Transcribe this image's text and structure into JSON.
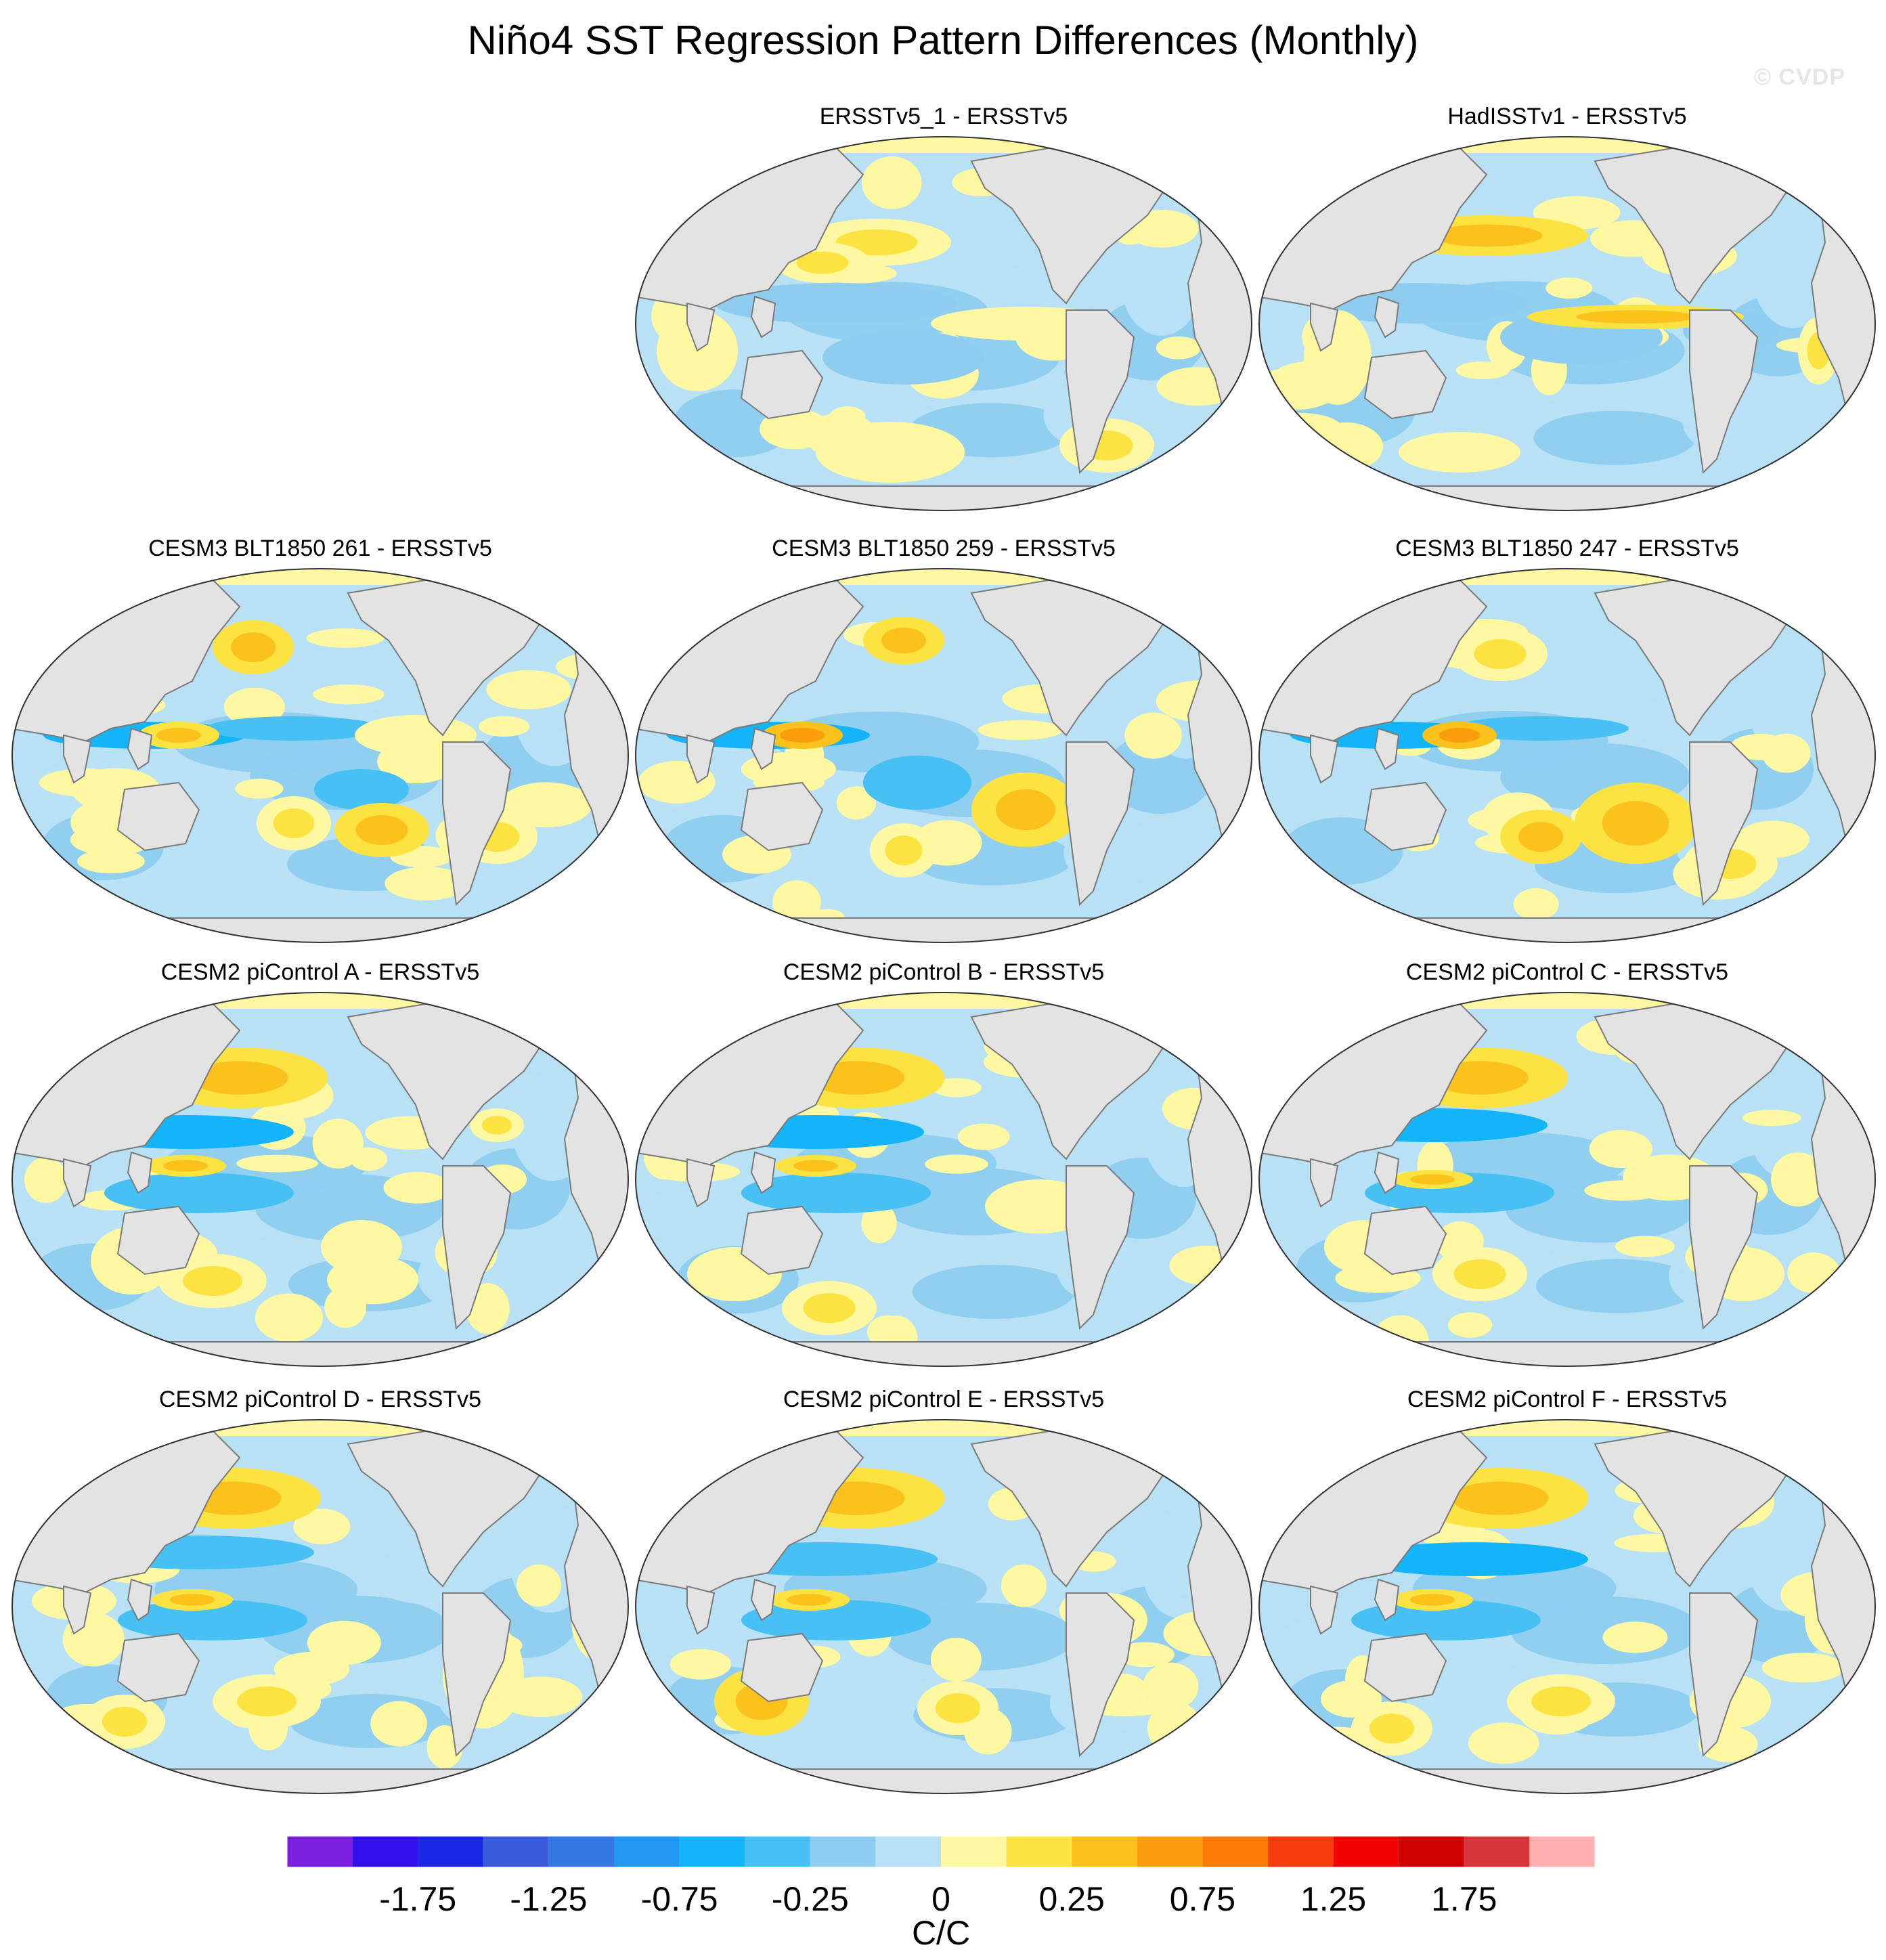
{
  "title": "Niño4 SST Regression Pattern Differences (Monthly)",
  "watermark": "© CVDP",
  "colors": {
    "land": "#e3e3e3",
    "coast": "#7a7a7a",
    "levels": [
      "#7c20e0",
      "#3210ee",
      "#1a28e6",
      "#3b5ddc",
      "#3478e6",
      "#2196f3",
      "#14b4f8",
      "#47c0f3",
      "#8ecdf0",
      "#b8e1f5",
      "#fff8a2",
      "#fde342",
      "#fcc21c",
      "#fb9e0c",
      "#fa7b05",
      "#f83c0d",
      "#f30404",
      "#cf0303",
      "#d7373c",
      "#ffb1b1"
    ]
  },
  "panels": [
    {
      "id": "ersstv5-1",
      "title": "ERSSTv5_1 - ERSSTv5"
    },
    {
      "id": "hadisstv1",
      "title": "HadISSTv1 - ERSSTv5"
    },
    {
      "id": "cesm3-261",
      "title": "CESM3 BLT1850 261 - ERSSTv5"
    },
    {
      "id": "cesm3-259",
      "title": "CESM3 BLT1850 259 - ERSSTv5"
    },
    {
      "id": "cesm3-247",
      "title": "CESM3 BLT1850 247 - ERSSTv5"
    },
    {
      "id": "cesm2-a",
      "title": "CESM2 piControl A - ERSSTv5"
    },
    {
      "id": "cesm2-b",
      "title": "CESM2 piControl B - ERSSTv5"
    },
    {
      "id": "cesm2-c",
      "title": "CESM2 piControl C - ERSSTv5"
    },
    {
      "id": "cesm2-d",
      "title": "CESM2 piControl D - ERSSTv5"
    },
    {
      "id": "cesm2-e",
      "title": "CESM2 piControl E - ERSSTv5"
    },
    {
      "id": "cesm2-f",
      "title": "CESM2 piControl F - ERSSTv5"
    }
  ],
  "colorbar": {
    "tick_labels": [
      "-1.75",
      "-1.25",
      "-0.75",
      "-0.25",
      "0",
      "0.25",
      "0.75",
      "1.25",
      "1.75"
    ],
    "units": "C/C"
  }
}
